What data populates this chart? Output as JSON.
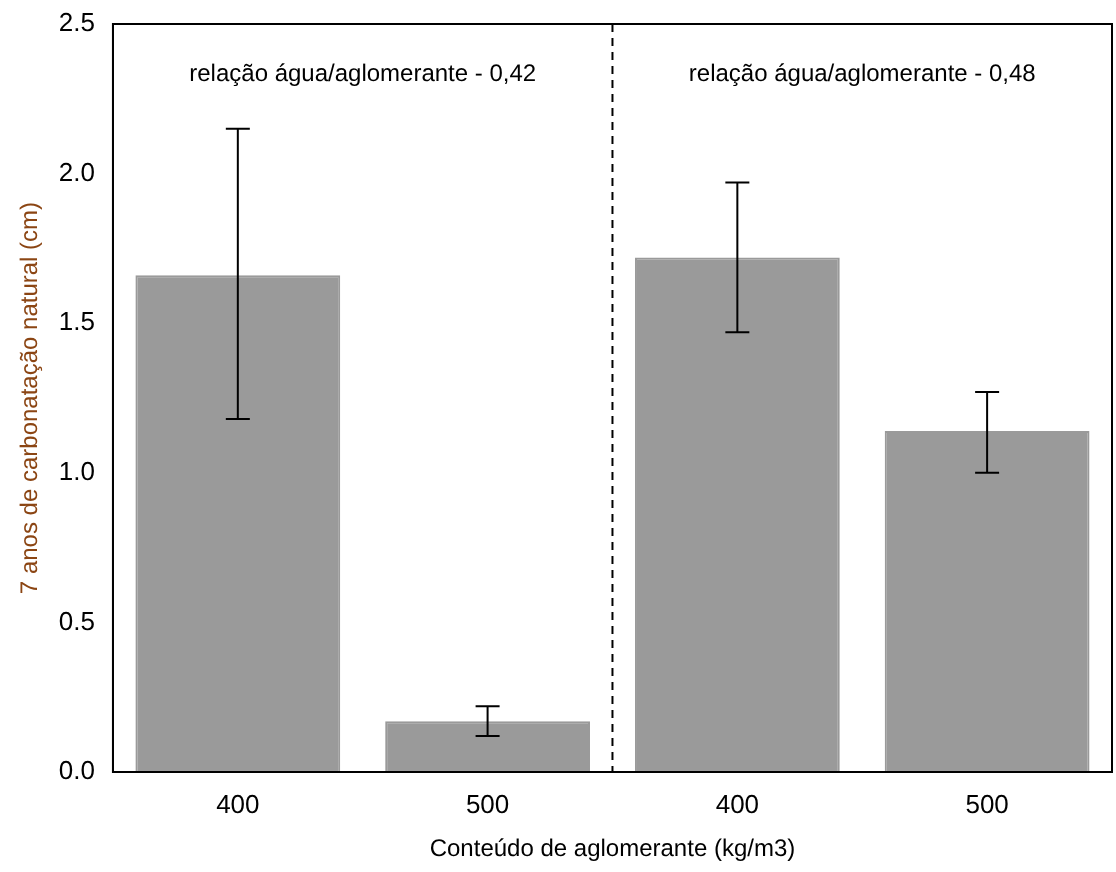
{
  "chart_data": {
    "type": "bar",
    "xlabel": "Conteúdo de aglomerante (kg/m3)",
    "ylabel": "7 anos de carbonatação natural (cm)",
    "categories": [
      "400",
      "500",
      "400",
      "500"
    ],
    "series": [
      {
        "color": "#9a9a9a",
        "values": [
          1.66,
          0.17,
          1.72,
          1.14
        ],
        "errors": [
          [
            1.18,
            2.15
          ],
          [
            0.12,
            0.22
          ],
          [
            1.47,
            1.97
          ],
          [
            1.0,
            1.27
          ]
        ]
      }
    ],
    "ylim": [
      0,
      2.5
    ],
    "yticks": [
      {
        "value": 0,
        "label": "0.0"
      },
      {
        "value": 0.5,
        "label": "0.5"
      },
      {
        "value": 1,
        "label": "1.0"
      },
      {
        "value": 1.5,
        "label": "1.5"
      },
      {
        "value": 2,
        "label": "2.0"
      },
      {
        "value": 2.5,
        "label": "2.5"
      }
    ],
    "annotations": [
      "relação água/aglomerante - 0,42",
      "relação água/aglomerante - 0,48"
    ],
    "grid": false,
    "legend": false
  }
}
